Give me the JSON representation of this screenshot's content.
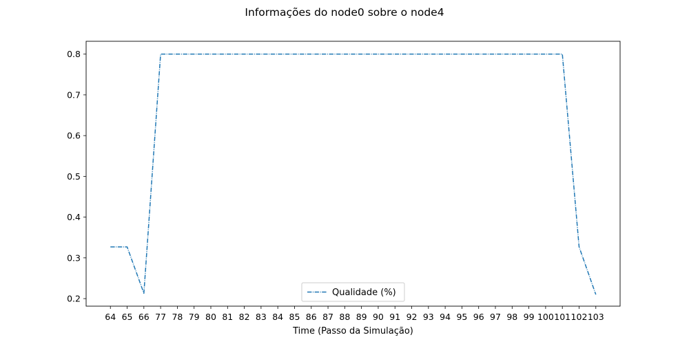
{
  "chart_data": {
    "type": "line",
    "title": "Informações do node0 sobre o node4",
    "xlabel": "Time (Passo da Simulação)",
    "ylabel": "",
    "categories": [
      "64",
      "65",
      "66",
      "77",
      "78",
      "79",
      "80",
      "81",
      "82",
      "83",
      "84",
      "85",
      "86",
      "87",
      "88",
      "89",
      "90",
      "91",
      "92",
      "93",
      "94",
      "95",
      "96",
      "97",
      "98",
      "99",
      "100",
      "101",
      "102",
      "103"
    ],
    "series": [
      {
        "name": "Qualidade (%)",
        "color": "#1f77b4",
        "line_style": "dash-dot",
        "values": [
          0.327,
          0.327,
          0.213,
          0.8,
          0.8,
          0.8,
          0.8,
          0.8,
          0.8,
          0.8,
          0.8,
          0.8,
          0.8,
          0.8,
          0.8,
          0.8,
          0.8,
          0.8,
          0.8,
          0.8,
          0.8,
          0.8,
          0.8,
          0.8,
          0.8,
          0.8,
          0.8,
          0.8,
          0.327,
          0.21
        ]
      }
    ],
    "y_ticks": [
      "0.2",
      "0.3",
      "0.4",
      "0.5",
      "0.6",
      "0.7",
      "0.8"
    ],
    "ylim": [
      0.1815,
      0.8315
    ],
    "grid": false,
    "legend_position": "bottom-center"
  }
}
